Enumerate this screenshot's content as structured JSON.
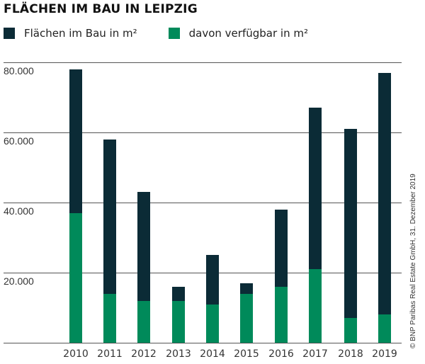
{
  "title": "FLÄCHEN IM BAU IN LEIPZIG",
  "legend": [
    {
      "label": "Flächen im Bau in m²",
      "color": "#0b2b36"
    },
    {
      "label": "davon verfügbar in m²",
      "color": "#008a5a"
    }
  ],
  "credit": "© BNP Paribas Real Estate GmbH, 31. Dezember 2019",
  "y_ticks": [
    "80.000",
    "60.000",
    "40.000",
    "20.000"
  ],
  "chart_data": {
    "type": "bar",
    "stacked": "overlay",
    "title": "FLÄCHEN IM BAU IN LEIPZIG",
    "xlabel": "",
    "ylabel": "",
    "categories": [
      "2010",
      "2011",
      "2012",
      "2013",
      "2014",
      "2015",
      "2016",
      "2017",
      "2018",
      "2019"
    ],
    "series": [
      {
        "name": "Flächen im Bau in m²",
        "color": "#0b2b36",
        "values": [
          78000,
          58000,
          43000,
          16000,
          25000,
          17000,
          38000,
          67000,
          61000,
          77000
        ]
      },
      {
        "name": "davon verfügbar in m²",
        "color": "#008a5a",
        "values": [
          37000,
          14000,
          12000,
          12000,
          11000,
          14000,
          16000,
          21000,
          7000,
          8000
        ]
      }
    ],
    "y_ticks": [
      0,
      20000,
      40000,
      60000,
      80000
    ],
    "y_tick_labels": [
      "",
      "20.000",
      "40.000",
      "60.000",
      "80.000"
    ],
    "ylim": [
      0,
      80000
    ],
    "grid": true,
    "legend_position": "top-left",
    "annotations": [
      "© BNP Paribas Real Estate GmbH, 31. Dezember 2019"
    ]
  }
}
